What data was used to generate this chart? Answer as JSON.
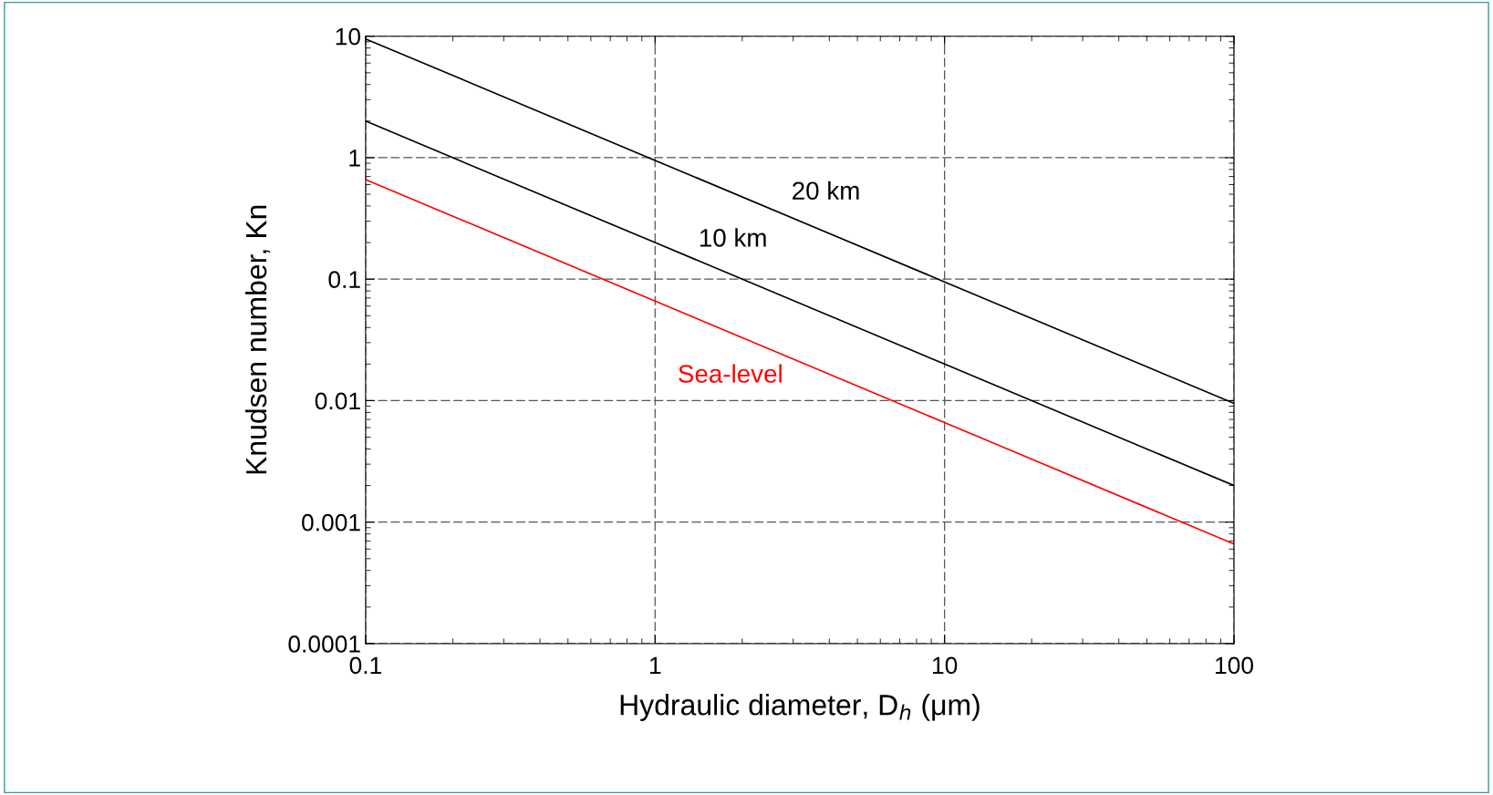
{
  "chart_data": {
    "type": "line",
    "xlabel": "Hydraulic diameter, D$_{h}$ (μm)",
    "ylabel": "Knudsen number, Kn",
    "log": "xy",
    "grid": true,
    "line_style": "solid",
    "marker": "none",
    "xlim": [
      0.1,
      100
    ],
    "xticks": [
      0.1,
      1,
      10,
      100
    ],
    "ylim": [
      0.0001,
      10
    ],
    "yticks": [
      0.0001,
      0.001,
      0.01,
      0.1,
      1,
      10
    ],
    "series": [
      {
        "name": "20 km",
        "color": "#000000",
        "x": [
          0.1,
          1,
          10,
          100
        ],
        "values": [
          9.5,
          0.95,
          0.095,
          0.0095
        ]
      },
      {
        "name": "10 km",
        "color": "#000000",
        "x": [
          0.1,
          1,
          10,
          100
        ],
        "values": [
          2.0,
          0.2,
          0.02,
          0.002
        ]
      },
      {
        "name": "Sea-level",
        "color": "#ff0000",
        "x": [
          0.1,
          1,
          10,
          100
        ],
        "values": [
          0.66,
          0.066,
          0.0066,
          0.00066
        ]
      }
    ]
  }
}
